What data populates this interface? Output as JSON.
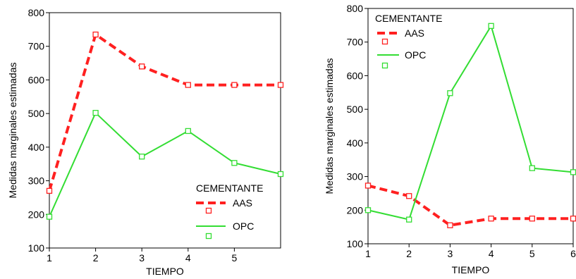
{
  "colors": {
    "aas": "#ff2020",
    "opc": "#33dd33",
    "axis": "#000000"
  },
  "chart_data": [
    {
      "type": "line",
      "xlabel": "TIEMPO",
      "ylabel": "Medidas marginales estimadas",
      "x": [
        1,
        2,
        3,
        4,
        5,
        6
      ],
      "x_ticks": [
        1,
        2,
        3,
        4,
        5
      ],
      "ylim": [
        100,
        800
      ],
      "y_ticks": [
        100,
        200,
        300,
        400,
        500,
        600,
        700,
        800
      ],
      "legend_title": "CEMENTANTE",
      "legend_placement": "bottom-right",
      "series": [
        {
          "name": "AAS",
          "style": "dashed",
          "values": [
            270,
            735,
            640,
            585,
            585,
            585
          ]
        },
        {
          "name": "OPC",
          "style": "solid",
          "values": [
            193,
            502,
            372,
            448,
            353,
            320
          ]
        }
      ]
    },
    {
      "type": "line",
      "xlabel": "TIEMPO",
      "ylabel": "Medidas marginales estimadas",
      "x": [
        1,
        2,
        3,
        4,
        5,
        6
      ],
      "x_ticks": [
        1,
        2,
        3,
        4,
        5,
        6
      ],
      "ylim": [
        100,
        800
      ],
      "y_ticks": [
        100,
        200,
        300,
        400,
        500,
        600,
        700,
        800
      ],
      "legend_title": "CEMENTANTE",
      "legend_placement": "top-left",
      "series": [
        {
          "name": "AAS",
          "style": "dashed",
          "values": [
            273,
            242,
            155,
            175,
            175,
            175
          ]
        },
        {
          "name": "OPC",
          "style": "solid",
          "values": [
            200,
            172,
            548,
            748,
            325,
            313
          ]
        }
      ]
    }
  ]
}
